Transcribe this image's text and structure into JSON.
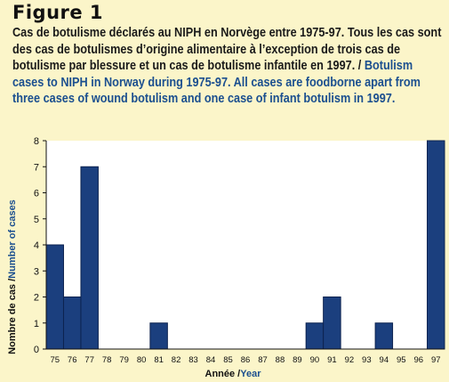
{
  "figure": {
    "label": "Figure 1",
    "caption_fr": "Cas de botulisme déclarés au NIPH en Norvège entre 1975-97. Tous les cas sont des cas de botulismes d’origine alimentaire à l’exception de trois cas de botulisme par blessure et un cas de botulisme infantile en 1997. /",
    "caption_en": "Botulism cases to NIPH in Norway during 1975-97. All cases are foodborne apart from three cases of wound botulism and one case of infant botulism in 1997."
  },
  "colors": {
    "bar": "#1b3f7e",
    "accent_blue": "#1b4f8f",
    "background": "#fbf5c9",
    "plot_bg": "#ffffff"
  },
  "chart_data": {
    "type": "bar",
    "categories": [
      "75",
      "76",
      "77",
      "78",
      "79",
      "80",
      "81",
      "82",
      "83",
      "84",
      "85",
      "86",
      "87",
      "88",
      "89",
      "90",
      "91",
      "92",
      "93",
      "94",
      "95",
      "96",
      "97"
    ],
    "values": [
      4,
      2,
      7,
      0,
      0,
      0,
      1,
      0,
      0,
      0,
      0,
      0,
      0,
      0,
      0,
      1,
      2,
      0,
      0,
      1,
      0,
      0,
      8
    ],
    "xlabel_fr": "Année /",
    "xlabel_en": "Year",
    "ylabel_fr": "Nombre de cas /",
    "ylabel_en": "Number of cases",
    "ylim": [
      0,
      8
    ],
    "yticks": [
      0,
      1,
      2,
      3,
      4,
      5,
      6,
      7,
      8
    ],
    "grid": false,
    "legend": "none"
  }
}
